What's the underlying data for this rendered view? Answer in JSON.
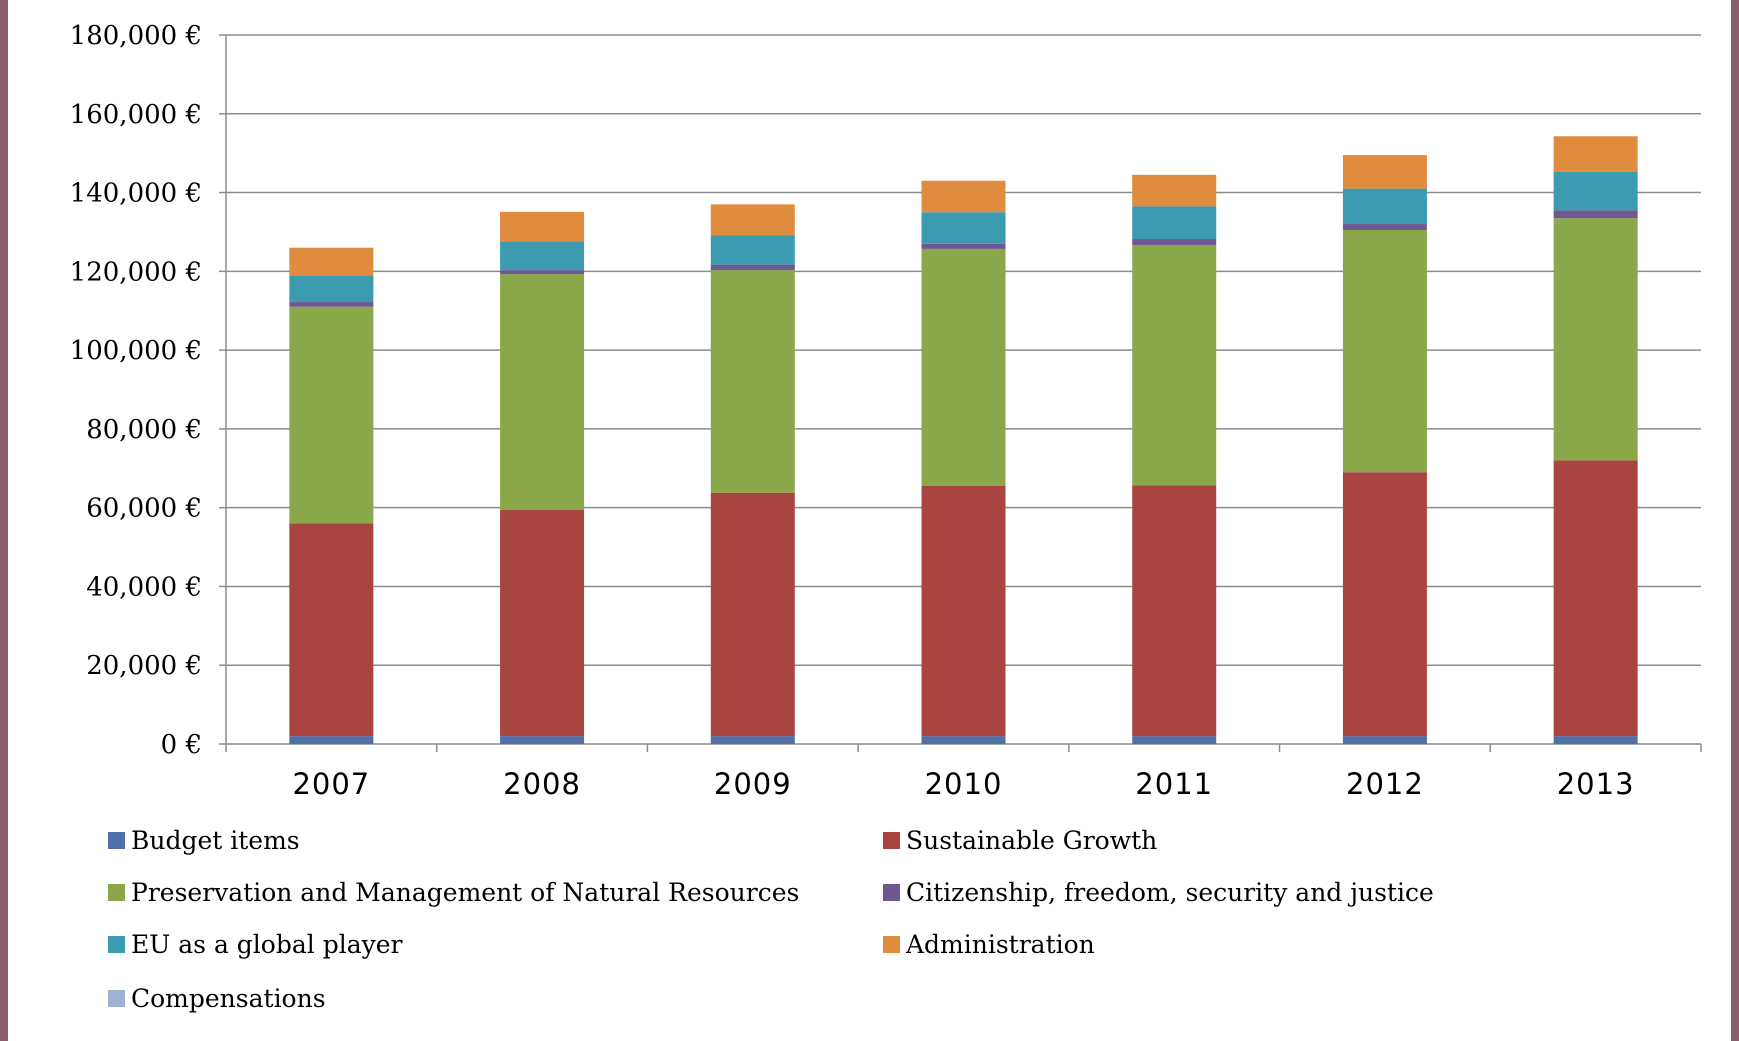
{
  "chart_data": {
    "type": "bar",
    "stacked": true,
    "categories": [
      "2007",
      "2008",
      "2009",
      "2010",
      "2011",
      "2012",
      "2013"
    ],
    "ylim": [
      0,
      180000
    ],
    "yticks": [
      0,
      20000,
      40000,
      60000,
      80000,
      100000,
      120000,
      140000,
      160000,
      180000
    ],
    "ytick_labels": [
      "0 €",
      "20,000 €",
      "40,000 €",
      "60,000 €",
      "80,000 €",
      "100,000 €",
      "120,000 €",
      "140,000 €",
      "160,000 €",
      "180,000 €"
    ],
    "grid": true,
    "legend_position": "bottom",
    "series": [
      {
        "name": "Budget items",
        "color": "#4f6fa8",
        "values": [
          2000,
          2000,
          2000,
          2000,
          2000,
          2000,
          2000
        ]
      },
      {
        "name": "Sustainable Growth",
        "color": "#a84541",
        "values": [
          54000,
          57500,
          61800,
          63500,
          63700,
          67000,
          70000
        ]
      },
      {
        "name": "Preservation and Management of Natural Resources",
        "color": "#8aa84a",
        "values": [
          55000,
          59800,
          56500,
          60200,
          61000,
          61500,
          61500
        ]
      },
      {
        "name": "Citizenship, freedom, security and justice",
        "color": "#6f5790",
        "values": [
          1200,
          1000,
          1400,
          1300,
          1500,
          1500,
          2000
        ]
      },
      {
        "name": "EU as a global player",
        "color": "#3c9ab1",
        "values": [
          6800,
          7300,
          7500,
          8000,
          8300,
          9000,
          9800
        ]
      },
      {
        "name": "Administration",
        "color": "#e08c3e",
        "values": [
          7000,
          7500,
          7800,
          8000,
          8000,
          8500,
          9000
        ]
      },
      {
        "name": "Compensations",
        "color": "#9fb2d3",
        "values": [
          0,
          0,
          0,
          0,
          0,
          0,
          0
        ]
      }
    ]
  }
}
